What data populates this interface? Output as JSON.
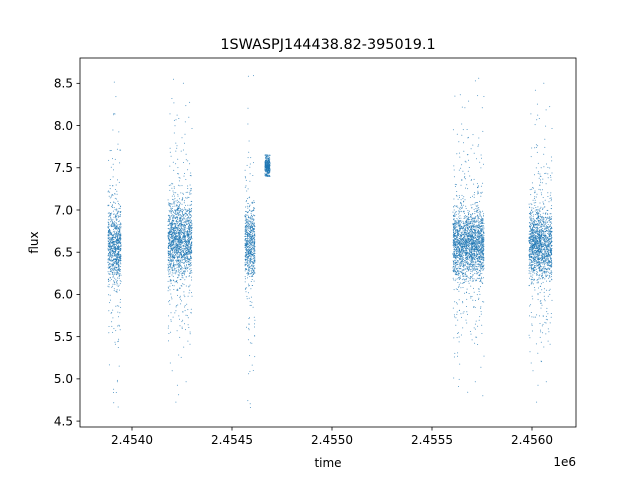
{
  "chart_data": {
    "type": "scatter",
    "title": "1SWASPJ144438.82-395019.1",
    "xlabel": "time",
    "ylabel": "flux",
    "x_offset_label": "1e6",
    "xlim": [
      2453740,
      2456220
    ],
    "ylim": [
      4.43,
      8.8
    ],
    "x_ticks": [
      2454000,
      2454500,
      2455000,
      2455500,
      2456000
    ],
    "x_tick_labels": [
      "2.4540",
      "2.4545",
      "2.4550",
      "2.4555",
      "2.4560"
    ],
    "y_ticks": [
      4.5,
      5.0,
      5.5,
      6.0,
      6.5,
      7.0,
      7.5,
      8.0,
      8.5
    ],
    "y_tick_labels": [
      "4.5",
      "5.0",
      "5.5",
      "6.0",
      "6.5",
      "7.0",
      "7.5",
      "8.0",
      "8.5"
    ],
    "grid": false,
    "marker_color": "#1f77b4",
    "observation_seasons": [
      {
        "x_range": [
          2453880,
          2453945
        ],
        "y_core": [
          6.2,
          6.95
        ],
        "y_min": 4.65,
        "y_max": 8.65
      },
      {
        "x_range": [
          2454180,
          2454300
        ],
        "y_core": [
          6.25,
          7.05
        ],
        "y_min": 4.65,
        "y_max": 8.65
      },
      {
        "x_range": [
          2454565,
          2454615
        ],
        "y_core": [
          6.25,
          6.95
        ],
        "y_min": 4.65,
        "y_max": 8.65
      },
      {
        "x_range": [
          2454665,
          2454690
        ],
        "y_core": [
          7.4,
          7.65
        ],
        "y_min": 7.4,
        "y_max": 7.65
      },
      {
        "x_range": [
          2455605,
          2455760
        ],
        "y_core": [
          6.25,
          6.95
        ],
        "y_min": 4.8,
        "y_max": 8.6
      },
      {
        "x_range": [
          2455985,
          2456100
        ],
        "y_core": [
          6.25,
          6.95
        ],
        "y_min": 4.65,
        "y_max": 8.65
      }
    ]
  }
}
